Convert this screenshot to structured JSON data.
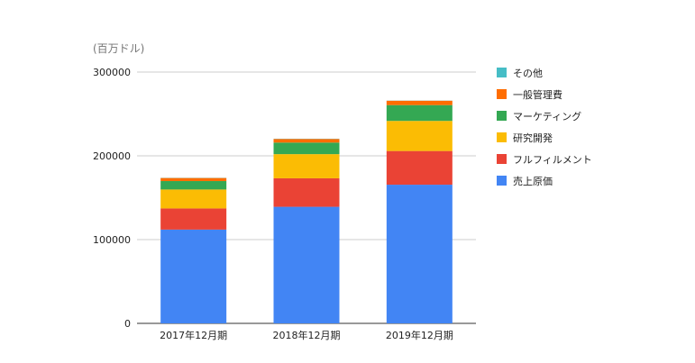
{
  "chart_data": {
    "type": "bar",
    "stacked": true,
    "title": "",
    "ylabel": "(百万ドル)",
    "xlabel": "",
    "ylim": [
      0,
      300000
    ],
    "yticks": [
      0,
      100000,
      200000,
      300000
    ],
    "ytick_labels": [
      "0",
      "100000",
      "200000",
      "300000"
    ],
    "grid": true,
    "legend_position": "right",
    "categories": [
      "2017年12月期",
      "2018年12月期",
      "2019年12月期"
    ],
    "series": [
      {
        "name": "売上原価",
        "color": "#4285F4",
        "values": [
          111934,
          139156,
          165536
        ]
      },
      {
        "name": "フルフィルメント",
        "color": "#EA4335",
        "values": [
          25249,
          34027,
          40232
        ]
      },
      {
        "name": "研究開発",
        "color": "#FBBC04",
        "values": [
          22620,
          28837,
          35931
        ]
      },
      {
        "name": "マーケティング",
        "color": "#34A853",
        "values": [
          10069,
          13814,
          18878
        ]
      },
      {
        "name": "一般管理費",
        "color": "#FF6D01",
        "values": [
          3674,
          4336,
          5203
        ]
      },
      {
        "name": "その他",
        "color": "#46BDC6",
        "values": [
          214,
          296,
          201
        ]
      }
    ]
  }
}
